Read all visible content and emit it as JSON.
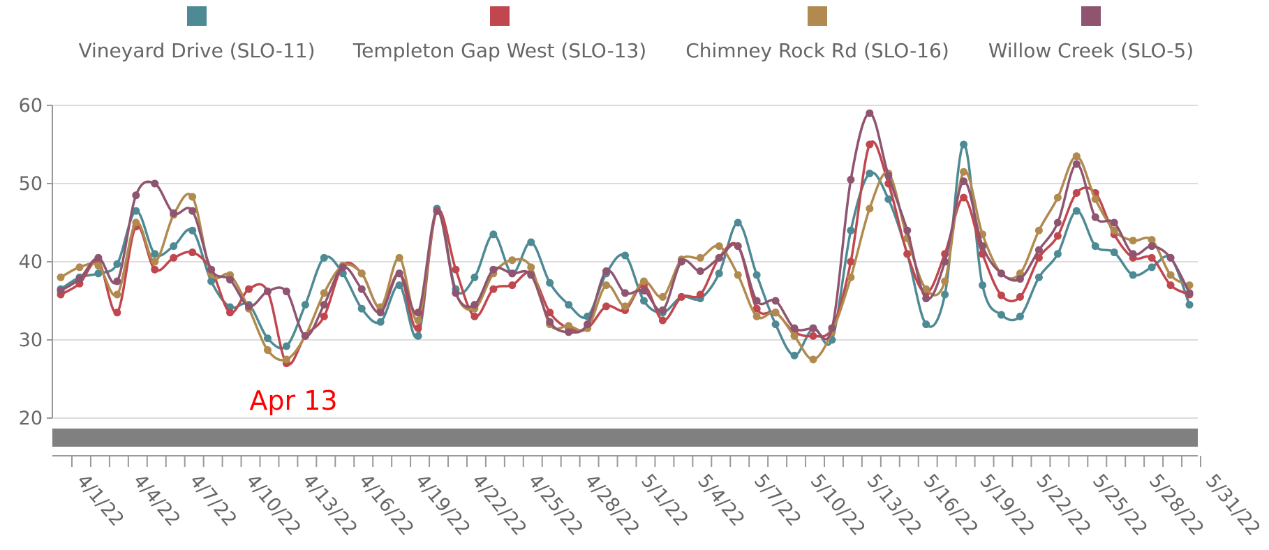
{
  "chart_data": {
    "type": "line",
    "categories": [
      "4/1/22",
      null,
      null,
      "4/4/22",
      null,
      null,
      "4/7/22",
      null,
      null,
      "4/10/22",
      null,
      null,
      "4/13/22",
      null,
      null,
      "4/16/22",
      null,
      null,
      "4/19/22",
      null,
      null,
      "4/22/22",
      null,
      null,
      "4/25/22",
      null,
      null,
      "4/28/22",
      null,
      null,
      "5/1/22",
      null,
      null,
      "5/4/22",
      null,
      null,
      "5/7/22",
      null,
      null,
      "5/10/22",
      null,
      null,
      "5/13/22",
      null,
      null,
      "5/16/22",
      null,
      null,
      "5/19/22",
      null,
      null,
      "5/22/22",
      null,
      null,
      "5/25/22",
      null,
      null,
      "5/28/22",
      null,
      null,
      "5/31/22"
    ],
    "series": [
      {
        "name": "Vineyard Drive (SLO-11)",
        "color": "#4e8a94",
        "values": [
          36.5,
          38,
          38.5,
          39.7,
          46.5,
          41,
          42,
          44,
          37.5,
          34.2,
          34.5,
          30.2,
          29.2,
          34.5,
          40.5,
          38.5,
          34,
          32.3,
          37,
          30.5,
          46.8,
          36.5,
          38,
          43.5,
          38.5,
          42.5,
          37.3,
          34.5,
          33,
          38.5,
          40.8,
          35,
          33.5,
          35.5,
          35.3,
          38.5,
          45,
          38.3,
          32,
          28,
          31.5,
          30,
          44,
          51.3,
          48,
          41,
          32,
          35.8,
          55,
          37,
          33.2,
          33,
          38,
          41,
          46.5,
          42,
          41.2,
          38.3,
          39.3,
          40.5,
          34.5
        ]
      },
      {
        "name": "Templeton Gap West (SLO-13)",
        "color": "#c1474f",
        "values": [
          35.8,
          37.2,
          40,
          33.5,
          44.5,
          39,
          40.5,
          41.2,
          39,
          33.5,
          36.5,
          36.2,
          27,
          30.5,
          33,
          39.5,
          38.5,
          34,
          38.5,
          31.5,
          46.5,
          39,
          33,
          36.5,
          37,
          38.5,
          33.5,
          31.5,
          31.5,
          34.3,
          33.8,
          37,
          32.5,
          35.5,
          35.8,
          40.5,
          42,
          34,
          33.5,
          31,
          30.5,
          31.5,
          40,
          55,
          50,
          41,
          36,
          41,
          48.2,
          41,
          35.7,
          35.5,
          40.5,
          43.3,
          48.8,
          48.8,
          43.5,
          40.5,
          40.5,
          37,
          35.8
        ]
      },
      {
        "name": "Chimney Rock Rd (SLO-16)",
        "color": "#b08a4e",
        "values": [
          38,
          39.3,
          39.5,
          35.8,
          45,
          40,
          46,
          48.3,
          38.5,
          38.3,
          34,
          28.7,
          27.5,
          30.5,
          36,
          39.5,
          38.5,
          34.2,
          40.5,
          32.5,
          46.5,
          36,
          34,
          38.5,
          40.2,
          39.3,
          32,
          31.8,
          31.5,
          37,
          34.3,
          37.5,
          35.5,
          40.3,
          40.5,
          42,
          38.3,
          33,
          33.5,
          30.5,
          27.5,
          31,
          38,
          46.8,
          51.3,
          43,
          36.5,
          37.5,
          51.5,
          43.5,
          38.5,
          38.5,
          44,
          48.2,
          53.5,
          48,
          44,
          42.7,
          42.8,
          38.3,
          37
        ]
      },
      {
        "name": "Willow Creek (SLO-5)",
        "color": "#8e5470",
        "values": [
          36.3,
          37.8,
          40.5,
          37.5,
          48.5,
          50,
          46.2,
          46.5,
          39,
          37.7,
          34.3,
          36.2,
          36.2,
          30.5,
          34.5,
          39.3,
          36.5,
          33.5,
          38.5,
          33.5,
          46.5,
          36,
          34.5,
          39,
          38.5,
          38.3,
          32.3,
          31,
          32,
          38.8,
          36,
          36.3,
          33.8,
          40,
          38.8,
          40.5,
          42,
          35,
          35,
          31.5,
          31.5,
          31.5,
          50.5,
          59,
          51,
          44,
          35.3,
          40,
          50.3,
          42,
          38.5,
          37.8,
          41.5,
          45,
          52.5,
          45.7,
          45,
          41,
          42,
          40.5,
          36
        ]
      }
    ],
    "ylim": [
      20,
      60
    ],
    "yticks": [
      20,
      30,
      40,
      50,
      60
    ],
    "grid": true,
    "legend": "top",
    "annotation": {
      "text": "Apr 13",
      "color": "#ff0000"
    }
  }
}
